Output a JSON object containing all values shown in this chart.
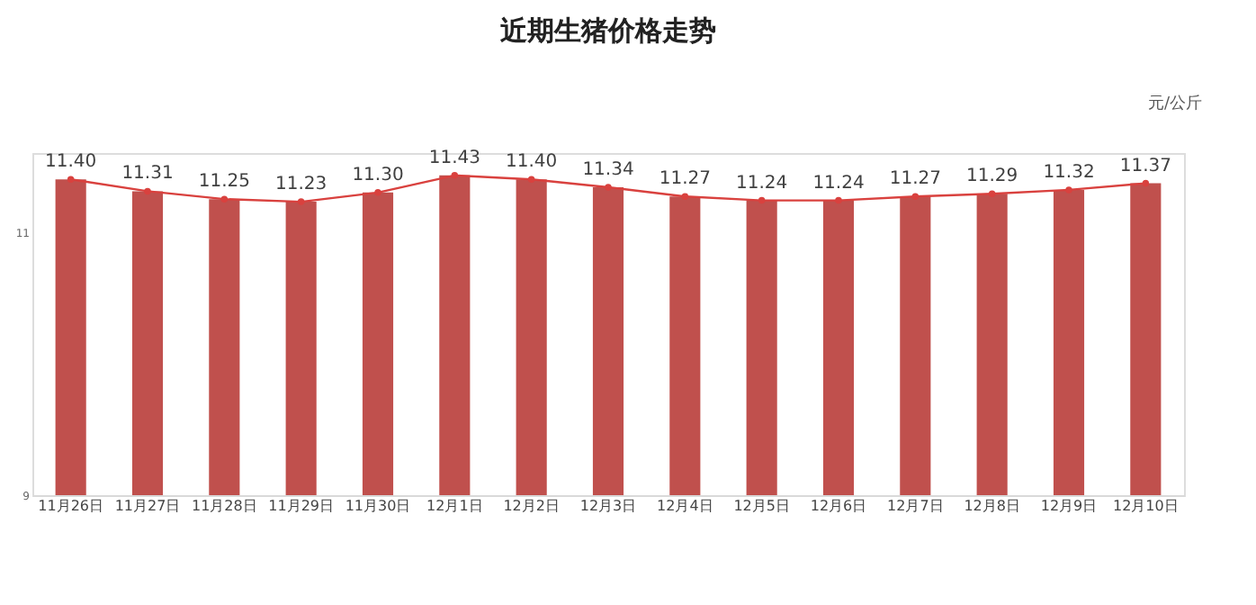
{
  "chart_data": {
    "type": "bar",
    "title": "近期生猪价格走势",
    "annotations": [
      "元/公斤"
    ],
    "categories": [
      "11月26日",
      "11月27日",
      "11月28日",
      "11月29日",
      "11月30日",
      "12月1日",
      "12月2日",
      "12月3日",
      "12月4日",
      "12月5日",
      "12月6日",
      "12月7日",
      "12月8日",
      "12月9日",
      "12月10日"
    ],
    "series": [
      {
        "color": "#c0504d",
        "values": [
          11.4,
          11.31,
          11.25,
          11.23,
          11.3,
          11.43,
          11.4,
          11.34,
          11.27,
          11.24,
          11.24,
          11.27,
          11.29,
          11.32,
          11.37
        ],
        "value_labels": [
          "11.40",
          "11.31",
          "11.25",
          "11.23",
          "11.30",
          "11.43",
          "11.40",
          "11.34",
          "11.27",
          "11.24",
          "11.24",
          "11.27",
          "11.29",
          "11.32",
          "11.37"
        ]
      },
      {
        "type": "line",
        "color": "#d9413e",
        "marker": "circle",
        "values": [
          11.4,
          11.31,
          11.25,
          11.23,
          11.3,
          11.43,
          11.4,
          11.34,
          11.27,
          11.24,
          11.24,
          11.27,
          11.29,
          11.32,
          11.37
        ]
      }
    ],
    "ylim": [
      9,
      11.6
    ],
    "yticks": [
      9,
      11
    ],
    "grid": false
  }
}
